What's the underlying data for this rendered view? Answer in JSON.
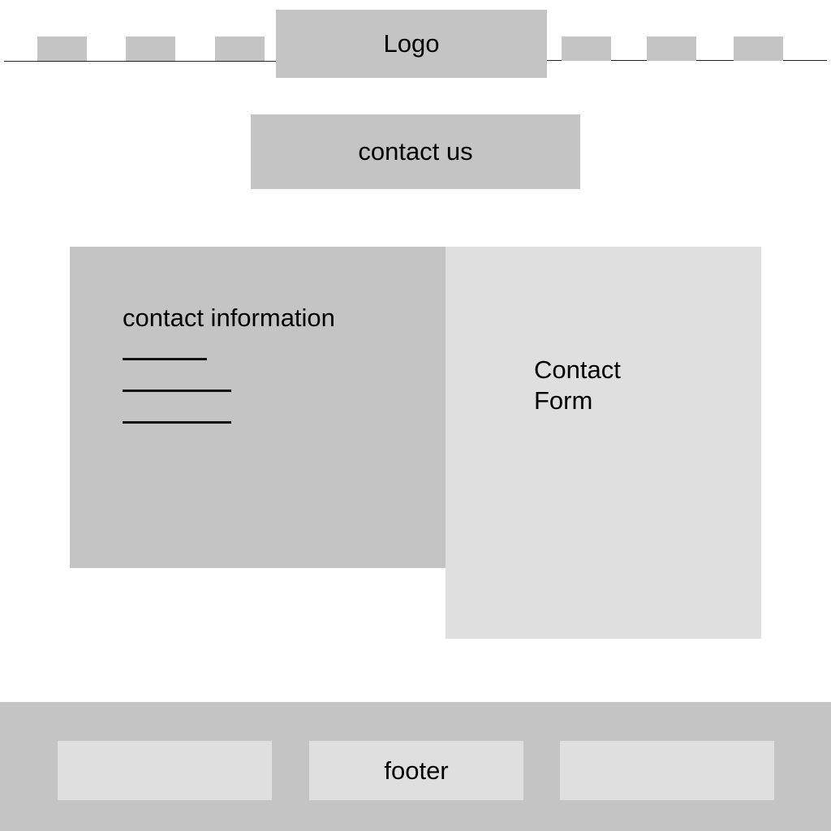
{
  "header": {
    "logo_text": "Logo",
    "nav_left_count": 3,
    "nav_right_count": 3
  },
  "hero": {
    "button_label": "contact us"
  },
  "contact_info": {
    "title": "contact information"
  },
  "contact_form": {
    "title": "Contact\nForm"
  },
  "footer": {
    "label": "footer"
  },
  "colors": {
    "block": "#c4c4c4",
    "block_light": "#dfdfdf",
    "background": "#ffffff"
  }
}
